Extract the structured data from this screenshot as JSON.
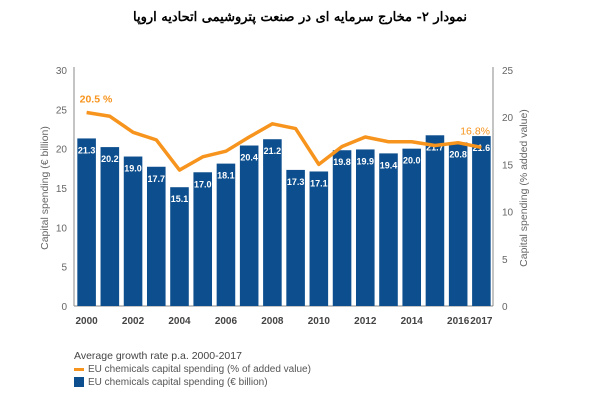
{
  "title": "نمودار ۲- مخارج سرمایه ای در صنعت پتروشیمی اتحادیه اروپا",
  "chart_data": {
    "type": "bar+line",
    "years": [
      2000,
      2001,
      2002,
      2003,
      2004,
      2005,
      2006,
      2007,
      2008,
      2009,
      2010,
      2011,
      2012,
      2013,
      2014,
      2015,
      2016,
      2017
    ],
    "x_tick_labels": [
      "2000",
      "2002",
      "2004",
      "2006",
      "2008",
      "2010",
      "2012",
      "2014",
      "2016",
      "2017"
    ],
    "series": [
      {
        "name": "EU chemicals capital spending (€ billion)",
        "type": "bar",
        "axis": "left",
        "color": "#0d4f8e",
        "values": [
          21.3,
          20.2,
          19.0,
          17.7,
          15.1,
          17.0,
          18.1,
          20.4,
          21.2,
          17.3,
          17.1,
          19.8,
          19.9,
          19.4,
          20.0,
          21.7,
          20.8,
          21.6
        ],
        "labels": [
          "21.3",
          "20.2",
          "19.0",
          "17.7",
          "15.1",
          "17.0",
          "18.1",
          "20.4",
          "21.2",
          "17.3",
          "17.1",
          "19.8",
          "19.9",
          "19.4",
          "20.0",
          "21.7",
          "20.8",
          "21.6"
        ]
      },
      {
        "name": "EU chemicals capital spending (% of added value)",
        "type": "line",
        "axis": "right",
        "color": "#f7941d",
        "values": [
          20.5,
          20.1,
          18.4,
          17.6,
          14.4,
          15.8,
          16.4,
          17.9,
          19.3,
          18.8,
          15.0,
          16.9,
          17.9,
          17.4,
          17.4,
          17.0,
          17.3,
          16.8
        ]
      }
    ],
    "annotations": {
      "first": "20.5 %",
      "last": "16.8%"
    },
    "left_axis": {
      "label": "Capital spending (€ billion)",
      "ylim": [
        0,
        30
      ],
      "ticks": [
        "0",
        "5",
        "10",
        "15",
        "20",
        "25",
        "30"
      ]
    },
    "right_axis": {
      "label": "Capital spending (% added value)",
      "ylim": [
        0,
        25
      ],
      "ticks": [
        "0",
        "5",
        "10",
        "15",
        "20",
        "25"
      ]
    },
    "legend": {
      "heading": "Average growth rate p.a. 2000-2017",
      "items": [
        "EU chemicals capital spending (% of added value)",
        "EU chemicals capital spending (€ billion)"
      ],
      "placement": "bottom-left"
    }
  }
}
